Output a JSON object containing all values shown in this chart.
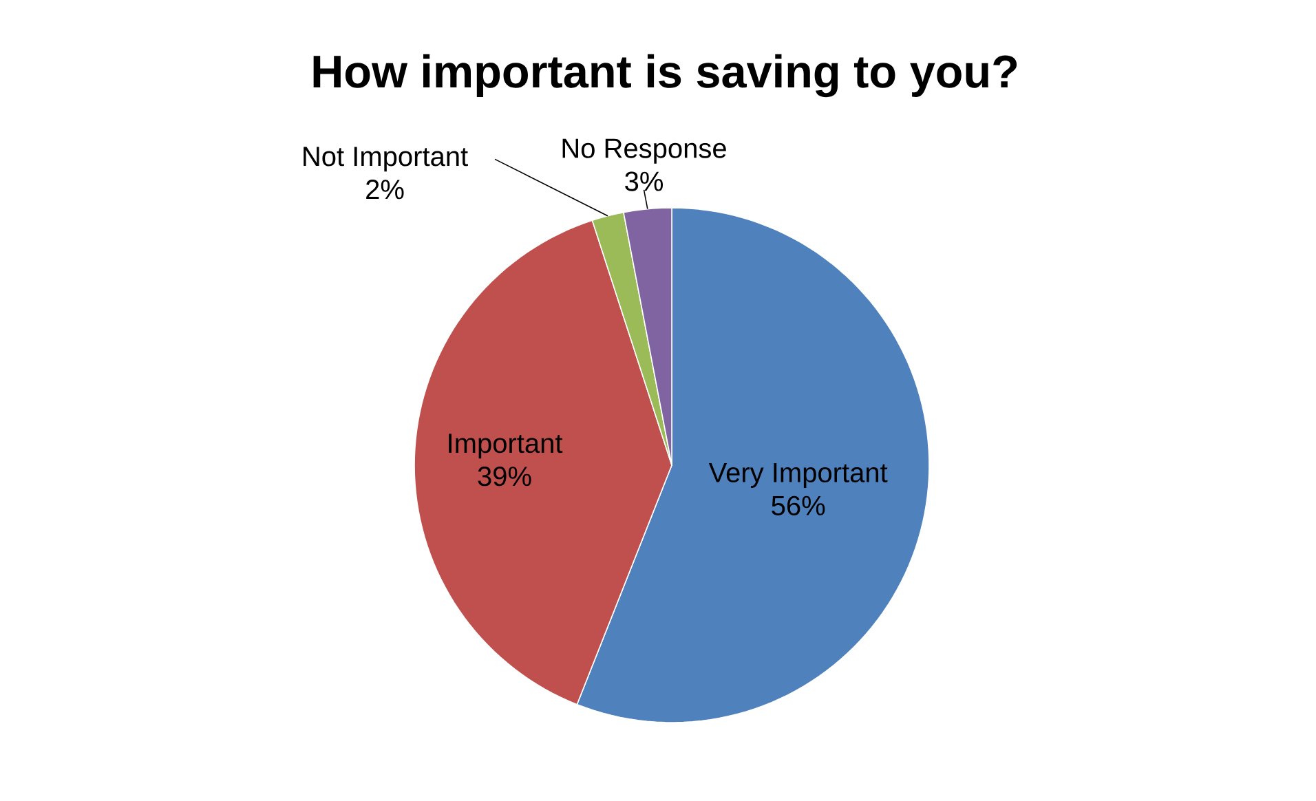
{
  "chart_data": {
    "type": "pie",
    "title": "How important is saving to you?",
    "categories": [
      "Very Important",
      "Important",
      "Not Important",
      "No Response"
    ],
    "values": [
      56,
      39,
      2,
      3
    ],
    "value_labels": [
      "56%",
      "39%",
      "2%",
      "3%"
    ],
    "colors": [
      "#4f81bd",
      "#c0504d",
      "#9bbb59",
      "#8064a2"
    ]
  }
}
